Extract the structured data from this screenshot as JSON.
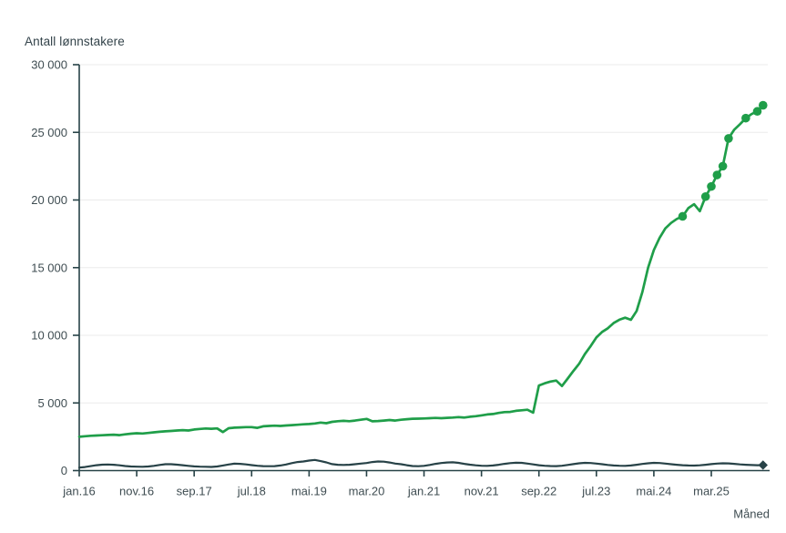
{
  "chart_data": {
    "type": "line",
    "title": "Antall lønnstakere",
    "xlabel": "Måned",
    "ylabel": "Antall lønnstakere",
    "grid": "horizontal-only",
    "legend": "none",
    "colors": {
      "green_series": "#1f9e49",
      "dark_series": "#274247",
      "axis": "#274247",
      "gridline": "#ebebeb",
      "text": "#3f4d52"
    },
    "ylim": [
      0,
      30000
    ],
    "y_ticks": [
      {
        "value": 0,
        "label": "0"
      },
      {
        "value": 5000,
        "label": "5 000"
      },
      {
        "value": 10000,
        "label": "10 000"
      },
      {
        "value": 15000,
        "label": "15 000"
      },
      {
        "value": 20000,
        "label": "20 000"
      },
      {
        "value": 25000,
        "label": "25 000"
      },
      {
        "value": 30000,
        "label": "30 000"
      }
    ],
    "x_ticks": [
      {
        "month_index": 0,
        "label": "jan.16"
      },
      {
        "month_index": 10,
        "label": "nov.16"
      },
      {
        "month_index": 20,
        "label": "sep.17"
      },
      {
        "month_index": 30,
        "label": "jul.18"
      },
      {
        "month_index": 40,
        "label": "mai.19"
      },
      {
        "month_index": 50,
        "label": "mar.20"
      },
      {
        "month_index": 60,
        "label": "jan.21"
      },
      {
        "month_index": 70,
        "label": "nov.21"
      },
      {
        "month_index": 80,
        "label": "sep.22"
      },
      {
        "month_index": 90,
        "label": "jul.23"
      },
      {
        "month_index": 100,
        "label": "mai.24"
      },
      {
        "month_index": 110,
        "label": "mar.25"
      }
    ],
    "x_range_months": 119,
    "series": [
      {
        "name": "green_series",
        "color": "#1f9e49",
        "line_width": 2.7,
        "values": [
          2500,
          2540,
          2570,
          2590,
          2610,
          2630,
          2650,
          2620,
          2680,
          2730,
          2760,
          2740,
          2780,
          2830,
          2870,
          2900,
          2930,
          2960,
          2990,
          2960,
          3040,
          3080,
          3110,
          3090,
          3120,
          2850,
          3130,
          3170,
          3190,
          3210,
          3215,
          3160,
          3270,
          3300,
          3320,
          3300,
          3330,
          3360,
          3390,
          3420,
          3440,
          3480,
          3550,
          3500,
          3600,
          3650,
          3680,
          3650,
          3700,
          3760,
          3820,
          3640,
          3660,
          3700,
          3740,
          3700,
          3760,
          3800,
          3830,
          3840,
          3850,
          3870,
          3890,
          3870,
          3900,
          3920,
          3950,
          3920,
          3980,
          4020,
          4080,
          4150,
          4180,
          4260,
          4320,
          4340,
          4420,
          4460,
          4500,
          4280,
          6290,
          6450,
          6580,
          6650,
          6250,
          6800,
          7370,
          7900,
          8610,
          9200,
          9840,
          10250,
          10520,
          10900,
          11150,
          11300,
          11145,
          11800,
          13200,
          15000,
          16300,
          17200,
          17900,
          18300,
          18600,
          18790,
          19400,
          19690,
          19170,
          20250,
          21000,
          21850,
          22500,
          24550,
          25200,
          25600,
          26050,
          26350,
          26550,
          27000
        ],
        "marker": "circle",
        "marker_month_indices": [
          105,
          109,
          110,
          111,
          112,
          113,
          116,
          118,
          119
        ]
      },
      {
        "name": "dark_series",
        "color": "#274247",
        "line_width": 2.2,
        "values": [
          220,
          260,
          330,
          400,
          440,
          450,
          430,
          390,
          340,
          300,
          290,
          280,
          300,
          350,
          420,
          470,
          470,
          440,
          400,
          350,
          310,
          290,
          280,
          270,
          300,
          380,
          450,
          515,
          500,
          460,
          405,
          360,
          330,
          320,
          330,
          380,
          450,
          550,
          630,
          675,
          740,
          785,
          700,
          605,
          480,
          430,
          420,
          430,
          470,
          520,
          560,
          630,
          675,
          660,
          600,
          520,
          470,
          400,
          340,
          320,
          350,
          420,
          500,
          560,
          600,
          610,
          570,
          500,
          440,
          390,
          360,
          350,
          380,
          430,
          500,
          550,
          580,
          570,
          520,
          460,
          400,
          360,
          340,
          330,
          360,
          420,
          480,
          540,
          570,
          560,
          520,
          470,
          420,
          380,
          360,
          350,
          380,
          430,
          490,
          540,
          570,
          560,
          520,
          470,
          430,
          400,
          380,
          370,
          390,
          430,
          480,
          520,
          540,
          530,
          500,
          460,
          430,
          410,
          400,
          405
        ],
        "marker": "diamond-on-last-point",
        "marker_month_indices": [
          119
        ]
      }
    ]
  }
}
